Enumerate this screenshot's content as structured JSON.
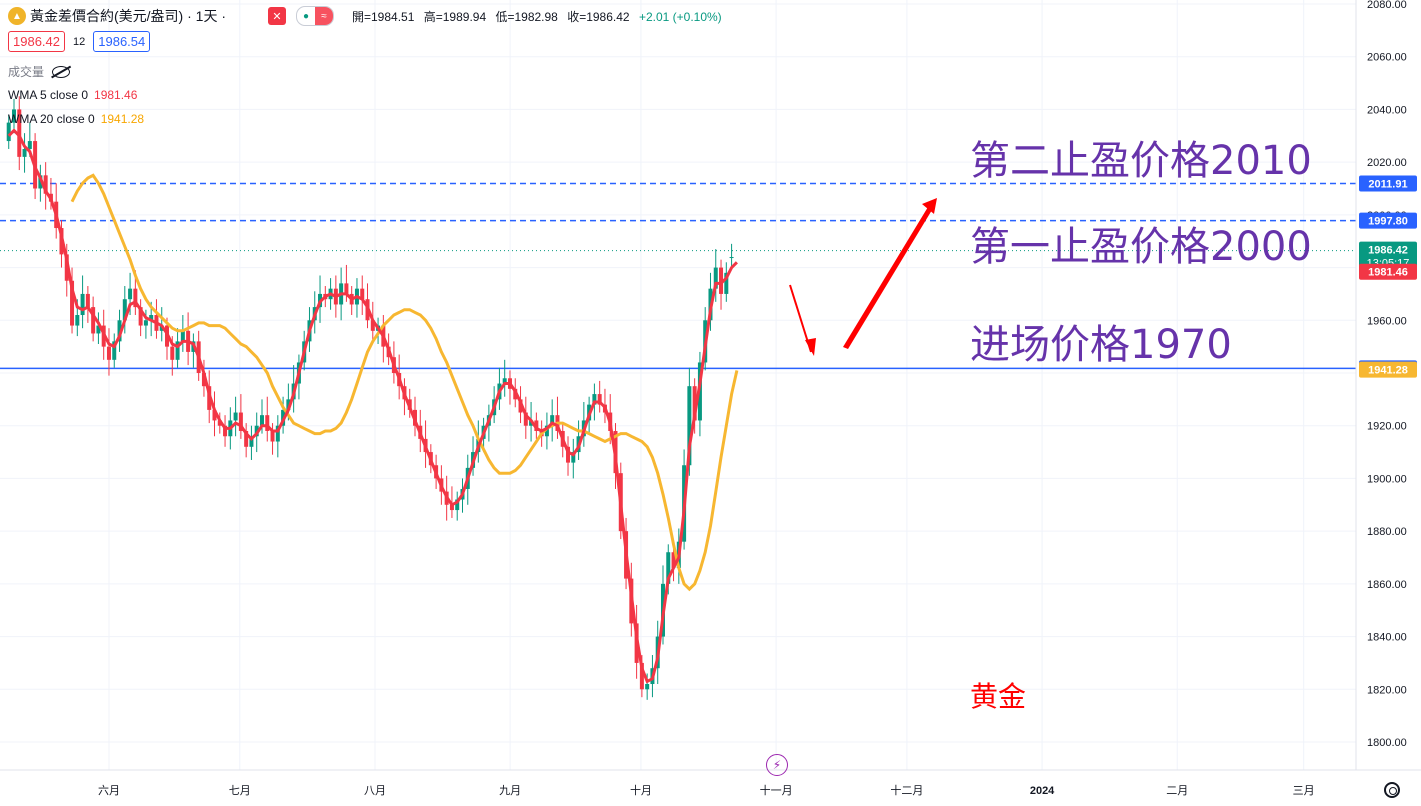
{
  "header": {
    "logo_icon": "gold-coin-icon",
    "title": "黃金差價合約(美元/盎司) · 1天 ·",
    "close_icon": "x-icon",
    "ohlc": {
      "open_label": "開=1984.51",
      "high_label": "高=1989.94",
      "low_label": "低=1982.98",
      "close_label": "收=1986.42",
      "change_label": "+2.01 (+0.10%)"
    },
    "sell_price": "1986.42",
    "spread": "12",
    "buy_price": "1986.54"
  },
  "indicators": {
    "volume_label": "成交量",
    "wma5_label": "WMA 5 close 0",
    "wma5_value": "1981.46",
    "wma20_label": "WMA 20 close 0",
    "wma20_value": "1941.28"
  },
  "colors": {
    "up": "#089981",
    "down": "#f23645",
    "wma5": "#f23645",
    "wma20": "#f7b731",
    "annotation": "#6633aa",
    "line_blue": "#2962ff"
  },
  "annotations": {
    "tp2": "第二止盈价格2010",
    "tp1": "第一止盈价格2000",
    "entry": "进场价格1970",
    "symbol_name": "黄金"
  },
  "chart_data": {
    "type": "candlestick",
    "y_ticks": [
      "2080.00",
      "2060.00",
      "2040.00",
      "2020.00",
      "2000.00",
      "1980.00",
      "1960.00",
      "1940.00",
      "1920.00",
      "1900.00",
      "1880.00",
      "1860.00",
      "1840.00",
      "1820.00",
      "1800.00"
    ],
    "x_ticks": [
      {
        "label": "六月",
        "day": 21
      },
      {
        "label": "七月",
        "day": 51
      },
      {
        "label": "八月",
        "day": 82
      },
      {
        "label": "九月",
        "day": 113
      },
      {
        "label": "十月",
        "day": 143
      },
      {
        "label": "十一月",
        "day": 174
      },
      {
        "label": "十二月",
        "day": 204
      },
      {
        "label": "2024",
        "day": 235
      },
      {
        "label": "二月",
        "day": 266
      },
      {
        "label": "三月",
        "day": 295
      }
    ],
    "ylim": [
      1800,
      2080
    ],
    "x_range_days": [
      -4,
      307
    ],
    "horizontal_lines": [
      {
        "price": 2011.91,
        "label": "2011.91",
        "style": "dashed",
        "color": "#2962ff"
      },
      {
        "price": 1997.8,
        "label": "1997.80",
        "style": "dashed",
        "color": "#2962ff"
      },
      {
        "price": 1941.75,
        "label": "1941.75",
        "style": "solid",
        "color": "#2962ff"
      }
    ],
    "price_labels": [
      {
        "price": 1986.42,
        "label": "1986.42",
        "sub": "13:05:17",
        "color": "#089981"
      },
      {
        "price": 1981.46,
        "label": "1981.46",
        "color": "#f23645"
      },
      {
        "price": 1941.28,
        "label": "1941.28",
        "color": "#f7b731"
      }
    ],
    "candles_close": [
      2035,
      2040,
      2022,
      2025,
      2028,
      2010,
      2015,
      2008,
      2005,
      1995,
      1985,
      1975,
      1958,
      1962,
      1970,
      1965,
      1955,
      1958,
      1950,
      1945,
      1952,
      1960,
      1968,
      1972,
      1965,
      1958,
      1960,
      1962,
      1956,
      1958,
      1950,
      1945,
      1952,
      1956,
      1948,
      1952,
      1940,
      1935,
      1926,
      1922,
      1920,
      1916,
      1922,
      1925,
      1918,
      1912,
      1916,
      1920,
      1924,
      1918,
      1914,
      1920,
      1926,
      1930,
      1936,
      1944,
      1952,
      1960,
      1965,
      1970,
      1968,
      1972,
      1966,
      1974,
      1970,
      1966,
      1972,
      1968,
      1960,
      1956,
      1958,
      1950,
      1946,
      1940,
      1935,
      1930,
      1926,
      1920,
      1915,
      1910,
      1905,
      1900,
      1895,
      1890,
      1888,
      1892,
      1896,
      1904,
      1910,
      1915,
      1920,
      1924,
      1930,
      1936,
      1938,
      1934,
      1930,
      1925,
      1920,
      1922,
      1918,
      1916,
      1920,
      1924,
      1918,
      1912,
      1906,
      1910,
      1916,
      1922,
      1928,
      1932,
      1928,
      1925,
      1918,
      1902,
      1880,
      1862,
      1845,
      1830,
      1820,
      1822,
      1828,
      1840,
      1860,
      1872,
      1866,
      1876,
      1905,
      1935,
      1922,
      1944,
      1960,
      1972,
      1980,
      1970,
      1978,
      1984,
      1986
    ],
    "candles_open": [
      2028,
      2035,
      2040,
      2022,
      2025,
      2028,
      2010,
      2015,
      2008,
      2005,
      1995,
      1985,
      1975,
      1958,
      1962,
      1970,
      1965,
      1955,
      1958,
      1950,
      1945,
      1952,
      1960,
      1968,
      1972,
      1965,
      1958,
      1960,
      1962,
      1956,
      1958,
      1950,
      1945,
      1952,
      1956,
      1948,
      1952,
      1940,
      1935,
      1926,
      1922,
      1920,
      1916,
      1922,
      1925,
      1918,
      1912,
      1916,
      1920,
      1924,
      1918,
      1914,
      1920,
      1926,
      1930,
      1936,
      1944,
      1952,
      1960,
      1965,
      1970,
      1968,
      1972,
      1966,
      1974,
      1970,
      1966,
      1972,
      1968,
      1960,
      1956,
      1958,
      1950,
      1946,
      1940,
      1935,
      1930,
      1926,
      1920,
      1915,
      1910,
      1905,
      1900,
      1895,
      1890,
      1888,
      1892,
      1896,
      1904,
      1910,
      1915,
      1920,
      1924,
      1930,
      1936,
      1938,
      1934,
      1930,
      1925,
      1920,
      1922,
      1918,
      1916,
      1920,
      1924,
      1918,
      1912,
      1906,
      1910,
      1916,
      1922,
      1928,
      1932,
      1928,
      1925,
      1918,
      1902,
      1880,
      1862,
      1845,
      1830,
      1820,
      1822,
      1828,
      1840,
      1860,
      1872,
      1866,
      1876,
      1905,
      1935,
      1922,
      1944,
      1960,
      1972,
      1980,
      1970,
      1984
    ],
    "wma5": [
      2030,
      2032,
      2030,
      2026,
      2024,
      2018,
      2014,
      2009,
      2006,
      2000,
      1992,
      1983,
      1972,
      1965,
      1964,
      1965,
      1962,
      1959,
      1955,
      1951,
      1950,
      1954,
      1960,
      1966,
      1967,
      1964,
      1961,
      1960,
      1959,
      1958,
      1955,
      1951,
      1950,
      1952,
      1952,
      1951,
      1946,
      1940,
      1932,
      1926,
      1922,
      1919,
      1919,
      1921,
      1920,
      1917,
      1915,
      1917,
      1920,
      1920,
      1918,
      1918,
      1922,
      1926,
      1932,
      1940,
      1948,
      1956,
      1962,
      1967,
      1969,
      1970,
      1969,
      1970,
      1970,
      1968,
      1969,
      1968,
      1965,
      1960,
      1957,
      1954,
      1949,
      1943,
      1938,
      1932,
      1927,
      1922,
      1917,
      1912,
      1907,
      1902,
      1897,
      1893,
      1890,
      1891,
      1894,
      1900,
      1906,
      1912,
      1917,
      1922,
      1927,
      1933,
      1936,
      1936,
      1933,
      1929,
      1924,
      1922,
      1919,
      1918,
      1919,
      1921,
      1920,
      1915,
      1910,
      1909,
      1912,
      1918,
      1924,
      1929,
      1929,
      1927,
      1921,
      1908,
      1890,
      1872,
      1856,
      1840,
      1828,
      1823,
      1824,
      1832,
      1848,
      1862,
      1866,
      1870,
      1888,
      1912,
      1924,
      1936,
      1950,
      1964,
      1974,
      1974,
      1976,
      1980,
      1982
    ],
    "wma20": [
      2005,
      2009,
      2012,
      2014,
      2015,
      2012,
      2008,
      2003,
      1998,
      1993,
      1988,
      1983,
      1977,
      1972,
      1968,
      1965,
      1963,
      1961,
      1959,
      1957,
      1956,
      1956,
      1957,
      1958,
      1959,
      1959,
      1958,
      1958,
      1958,
      1957,
      1955,
      1953,
      1951,
      1950,
      1948,
      1946,
      1943,
      1940,
      1935,
      1931,
      1927,
      1924,
      1921,
      1920,
      1919,
      1918,
      1917,
      1917,
      1918,
      1918,
      1919,
      1921,
      1925,
      1930,
      1936,
      1942,
      1948,
      1952,
      1955,
      1958,
      1960,
      1962,
      1963,
      1964,
      1964,
      1963,
      1962,
      1960,
      1957,
      1953,
      1948,
      1944,
      1939,
      1934,
      1929,
      1924,
      1920,
      1915,
      1911,
      1907,
      1904,
      1902,
      1902,
      1902,
      1903,
      1905,
      1908,
      1911,
      1914,
      1917,
      1919,
      1920,
      1921,
      1921,
      1920,
      1919,
      1918,
      1918,
      1917,
      1916,
      1915,
      1914,
      1915,
      1916,
      1917,
      1917,
      1916,
      1915,
      1914,
      1912,
      1908,
      1902,
      1894,
      1885,
      1875,
      1866,
      1860,
      1858,
      1860,
      1865,
      1872,
      1882,
      1895,
      1908,
      1920,
      1932,
      1941
    ]
  }
}
